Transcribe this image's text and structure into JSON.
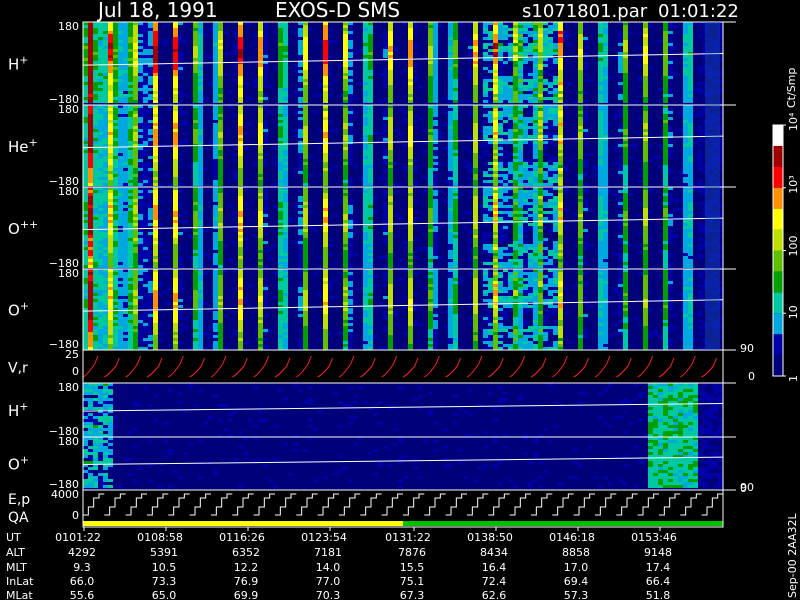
{
  "header": {
    "date": "Jul 18, 1991",
    "mission": "EXOS-D SMS",
    "file": "s1071801.par",
    "time": "01:01:22"
  },
  "colorbar": {
    "unit": "Ct/Smp",
    "ticks": [
      {
        "label": "1",
        "value": 1
      },
      {
        "label": "10",
        "value": 10
      },
      {
        "label": "100",
        "value": 100
      },
      {
        "label": "10³",
        "value": 1000
      },
      {
        "label": "10⁴",
        "value": 10000
      }
    ],
    "colors": [
      "#00007a",
      "#0000a8",
      "#00a8e0",
      "#00c8a0",
      "#00a000",
      "#60c000",
      "#c0e000",
      "#ffff00",
      "#ff9000",
      "#ff0000",
      "#a00000",
      "#ffffff"
    ]
  },
  "ephemeris": {
    "row_labels": [
      "UT",
      "ALT",
      "MLT",
      "InLat",
      "MLat"
    ],
    "columns": [
      {
        "UT": "0101:22",
        "ALT": "4292",
        "MLT": "9.3",
        "InLat": "66.0",
        "MLat": "55.6"
      },
      {
        "UT": "0108:58",
        "ALT": "5391",
        "MLT": "10.5",
        "InLat": "73.3",
        "MLat": "65.0"
      },
      {
        "UT": "0116:26",
        "ALT": "6352",
        "MLT": "12.2",
        "InLat": "76.9",
        "MLat": "69.9"
      },
      {
        "UT": "0123:54",
        "ALT": "7181",
        "MLT": "14.0",
        "InLat": "77.0",
        "MLat": "70.3"
      },
      {
        "UT": "0131:22",
        "ALT": "7876",
        "MLT": "15.5",
        "InLat": "75.1",
        "MLat": "67.3"
      },
      {
        "UT": "0138:50",
        "ALT": "8434",
        "MLT": "16.4",
        "InLat": "72.4",
        "MLat": "62.6"
      },
      {
        "UT": "0146:18",
        "ALT": "8858",
        "MLT": "17.0",
        "InLat": "69.4",
        "MLat": "57.3"
      },
      {
        "UT": "0153:46",
        "ALT": "9148",
        "MLT": "17.4",
        "InLat": "66.4",
        "MLat": "51.8"
      }
    ]
  },
  "footer_vertical": "Sep-00  2AA32L",
  "chart_data": [
    {
      "type": "heatmap",
      "panel": "H+",
      "ylabel": "H+",
      "ylabel_base": "H",
      "ylabel_sup": "+",
      "ylim": [
        -180,
        180
      ],
      "ticks": [
        "180",
        "−180"
      ],
      "spins": 30,
      "intensity": "high",
      "gap": [
        0.62,
        0.66
      ]
    },
    {
      "type": "heatmap",
      "panel": "He+",
      "ylabel": "He+",
      "ylabel_base": "He",
      "ylabel_sup": "+",
      "ylim": [
        -180,
        180
      ],
      "ticks": [
        "180",
        "−180"
      ],
      "spins": 30,
      "intensity": "medium",
      "gap": [
        0.62,
        0.66
      ]
    },
    {
      "type": "heatmap",
      "panel": "O++",
      "ylabel": "O++",
      "ylabel_base": "O",
      "ylabel_sup": "++",
      "ylim": [
        -180,
        180
      ],
      "ticks": [
        "180",
        "−180"
      ],
      "spins": 30,
      "intensity": "medium",
      "gap": [
        0.62,
        0.66
      ]
    },
    {
      "type": "heatmap",
      "panel": "O+",
      "ylabel": "O+",
      "ylabel_base": "O",
      "ylabel_sup": "+",
      "ylim": [
        -180,
        180
      ],
      "ticks": [
        "180",
        "−180"
      ],
      "spins": 30,
      "intensity": "medium",
      "gap": [
        0.62,
        0.66
      ]
    },
    {
      "type": "line",
      "panel": "V,r",
      "ylabel": "V,r",
      "ticks_left": [
        "25",
        "0"
      ],
      "ticks_right": [
        "90",
        "0"
      ],
      "ylim": [
        0,
        25
      ],
      "series": [
        {
          "color": "#ff2020",
          "values": "sawtooth",
          "cycles": 30
        }
      ]
    },
    {
      "type": "heatmap",
      "panel": "H+ (low energy)",
      "ylabel": "H+",
      "ylabel_base": "H",
      "ylabel_sup": "+",
      "ylim": [
        -180,
        180
      ],
      "ticks": [
        "180",
        "−180"
      ],
      "intensity": "low"
    },
    {
      "type": "heatmap",
      "panel": "O+ (low energy)",
      "ylabel": "O+",
      "ylabel_base": "O",
      "ylabel_sup": "+",
      "ylim": [
        -180,
        180
      ],
      "ticks": [
        "180",
        "−180"
      ],
      "ticks_right": [
        "90"
      ],
      "intensity": "low"
    },
    {
      "type": "line",
      "panel": "E,p QA",
      "ylabel": "E,p",
      "ylabel2": "QA",
      "ticks_left": [
        "4000",
        "0"
      ],
      "ticks_right": [
        "0"
      ],
      "ylim": [
        0,
        4000
      ],
      "series": [
        {
          "color": "#ffffff",
          "values": "staircase",
          "cycles": 30
        }
      ],
      "qa_bar": [
        {
          "color": "#ffff00",
          "from": 0,
          "to": 0.5
        },
        {
          "color": "#00c000",
          "from": 0.5,
          "to": 1
        }
      ]
    }
  ]
}
